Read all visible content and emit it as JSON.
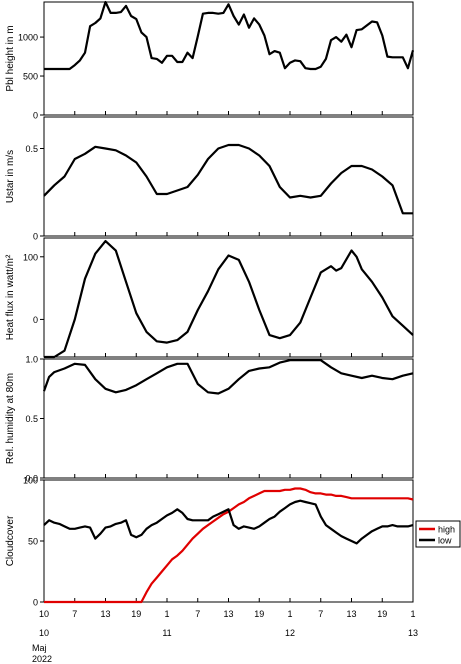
{
  "chart_data": [
    {
      "type": "line",
      "ylabel": "Pbl height in m",
      "ylim": [
        0,
        1450
      ],
      "yticks": [
        0,
        500,
        1000
      ],
      "x": [
        0,
        1,
        2,
        3,
        4,
        5,
        6,
        7,
        8,
        9,
        10,
        11,
        12,
        13,
        14,
        15,
        16,
        17,
        18,
        19,
        20,
        21,
        22,
        23,
        24,
        25,
        26,
        27,
        28,
        29,
        30,
        31,
        32,
        33,
        34,
        35,
        36,
        37,
        38,
        39,
        40,
        41,
        42,
        43,
        44,
        45,
        46,
        47,
        48,
        49,
        50,
        51,
        52,
        53,
        54,
        55,
        56,
        57,
        58,
        59,
        60,
        61,
        62,
        63,
        64,
        65,
        66,
        67,
        68,
        69,
        70,
        71,
        72
      ],
      "series": [
        {
          "color": "#000000",
          "values": [
            590,
            590,
            590,
            590,
            590,
            590,
            640,
            700,
            800,
            1140,
            1180,
            1240,
            1450,
            1310,
            1310,
            1320,
            1400,
            1270,
            1230,
            1060,
            1000,
            730,
            720,
            670,
            760,
            760,
            680,
            680,
            800,
            730,
            1010,
            1300,
            1310,
            1310,
            1300,
            1310,
            1420,
            1270,
            1160,
            1290,
            1120,
            1240,
            1160,
            1020,
            780,
            820,
            800,
            600,
            670,
            700,
            690,
            600,
            590,
            590,
            620,
            720,
            960,
            1000,
            940,
            1030,
            870,
            1090,
            1100,
            1150,
            1200,
            1190,
            1020,
            750,
            740,
            740,
            740,
            600,
            830
          ]
        }
      ]
    },
    {
      "type": "line",
      "ylabel": "Ustar in m/s",
      "ylim": [
        0,
        0.68
      ],
      "yticks": [
        0,
        0.5
      ],
      "x": [
        0,
        2,
        4,
        6,
        8,
        10,
        12,
        14,
        16,
        18,
        20,
        22,
        24,
        26,
        28,
        30,
        32,
        34,
        36,
        38,
        40,
        42,
        44,
        46,
        48,
        50,
        52,
        54,
        56,
        58,
        60,
        62,
        64,
        66,
        68,
        70,
        72
      ],
      "series": [
        {
          "color": "#000000",
          "values": [
            0.23,
            0.29,
            0.34,
            0.44,
            0.47,
            0.51,
            0.5,
            0.49,
            0.46,
            0.42,
            0.34,
            0.24,
            0.24,
            0.26,
            0.28,
            0.35,
            0.44,
            0.5,
            0.52,
            0.52,
            0.5,
            0.46,
            0.4,
            0.28,
            0.22,
            0.23,
            0.22,
            0.23,
            0.3,
            0.36,
            0.4,
            0.4,
            0.38,
            0.34,
            0.29,
            0.13,
            0.13
          ]
        }
      ]
    },
    {
      "type": "line",
      "ylabel": "Heat flux in watt/m²",
      "ylim": [
        -60,
        130
      ],
      "yticks": [
        0,
        100
      ],
      "x": [
        0,
        2,
        4,
        6,
        8,
        10,
        12,
        14,
        16,
        18,
        20,
        22,
        24,
        26,
        28,
        30,
        32,
        34,
        36,
        38,
        40,
        42,
        44,
        46,
        48,
        50,
        52,
        54,
        56,
        57,
        58,
        60,
        61,
        62,
        64,
        66,
        68,
        70,
        72
      ],
      "series": [
        {
          "color": "#000000",
          "values": [
            -60,
            -60,
            -50,
            0,
            65,
            105,
            125,
            110,
            60,
            10,
            -20,
            -35,
            -37,
            -33,
            -20,
            15,
            45,
            80,
            102,
            95,
            60,
            15,
            -25,
            -30,
            -25,
            -5,
            35,
            75,
            85,
            78,
            82,
            110,
            100,
            80,
            60,
            35,
            5,
            -10,
            -25
          ]
        }
      ]
    },
    {
      "type": "line",
      "ylabel": "Rel. humidity at 80m",
      "ylim": [
        0,
        1
      ],
      "yticks": [
        0.0,
        0.5,
        1.0
      ],
      "x": [
        0,
        1,
        2,
        4,
        6,
        8,
        10,
        12,
        14,
        16,
        18,
        20,
        22,
        24,
        26,
        28,
        30,
        32,
        34,
        36,
        38,
        40,
        42,
        44,
        46,
        48,
        50,
        52,
        54,
        56,
        58,
        60,
        62,
        64,
        66,
        68,
        70,
        72
      ],
      "series": [
        {
          "color": "#000000",
          "values": [
            0.73,
            0.85,
            0.89,
            0.92,
            0.96,
            0.95,
            0.83,
            0.75,
            0.72,
            0.74,
            0.78,
            0.83,
            0.88,
            0.93,
            0.96,
            0.96,
            0.79,
            0.72,
            0.71,
            0.75,
            0.83,
            0.9,
            0.92,
            0.93,
            0.97,
            0.99,
            0.99,
            0.99,
            0.99,
            0.93,
            0.88,
            0.86,
            0.84,
            0.86,
            0.84,
            0.83,
            0.86,
            0.88
          ]
        }
      ]
    },
    {
      "type": "line",
      "ylabel": "Cloudcover",
      "ylim": [
        0,
        100
      ],
      "yticks": [
        0,
        50,
        100
      ],
      "x": [
        0,
        1,
        2,
        3,
        4,
        5,
        6,
        7,
        8,
        9,
        10,
        11,
        12,
        13,
        14,
        15,
        16,
        17,
        18,
        19,
        20,
        21,
        22,
        23,
        24,
        25,
        26,
        27,
        28,
        29,
        30,
        31,
        32,
        33,
        34,
        35,
        36,
        37,
        38,
        39,
        40,
        41,
        42,
        43,
        44,
        45,
        46,
        47,
        48,
        49,
        50,
        51,
        52,
        53,
        54,
        55,
        56,
        57,
        58,
        59,
        60,
        61,
        62,
        63,
        64,
        65,
        66,
        67,
        68,
        69,
        70,
        71,
        72
      ],
      "legend": {
        "position": "right",
        "entries": [
          "high",
          "low"
        ]
      },
      "series": [
        {
          "name": "high",
          "color": "#e00000",
          "values": [
            0,
            0,
            0,
            0,
            0,
            0,
            0,
            0,
            0,
            0,
            0,
            0,
            0,
            0,
            0,
            0,
            0,
            0,
            0,
            0,
            8,
            15,
            20,
            25,
            30,
            35,
            38,
            42,
            47,
            52,
            56,
            60,
            63,
            66,
            69,
            72,
            74,
            77,
            80,
            82,
            85,
            87,
            89,
            91,
            91,
            91,
            91,
            92,
            92,
            93,
            93,
            92,
            90,
            89,
            89,
            88,
            88,
            87,
            87,
            86,
            85,
            85,
            85,
            85,
            85,
            85,
            85,
            85,
            85,
            85,
            85,
            85,
            84
          ]
        },
        {
          "name": "low",
          "color": "#000000",
          "values": [
            63,
            67,
            65,
            64,
            62,
            60,
            60,
            61,
            62,
            61,
            52,
            56,
            61,
            62,
            64,
            65,
            67,
            55,
            53,
            55,
            60,
            63,
            65,
            68,
            71,
            73,
            76,
            73,
            68,
            67,
            67,
            67,
            67,
            70,
            72,
            74,
            76,
            63,
            60,
            62,
            61,
            60,
            62,
            65,
            68,
            70,
            74,
            77,
            80,
            82,
            83,
            82,
            81,
            80,
            70,
            63,
            60,
            57,
            54,
            52,
            50,
            48,
            52,
            55,
            58,
            60,
            62,
            62,
            63,
            62,
            62,
            62,
            63
          ]
        }
      ]
    }
  ],
  "xaxis": {
    "xlim": [
      0,
      72
    ],
    "minor_labels": [
      "10",
      "7",
      "13",
      "19",
      "1",
      "7",
      "13",
      "19",
      "1",
      "7",
      "13",
      "19",
      "1"
    ],
    "day_labels": [
      "10",
      "11",
      "12",
      "13"
    ],
    "month_label": "Maj",
    "year_label": "2022"
  }
}
